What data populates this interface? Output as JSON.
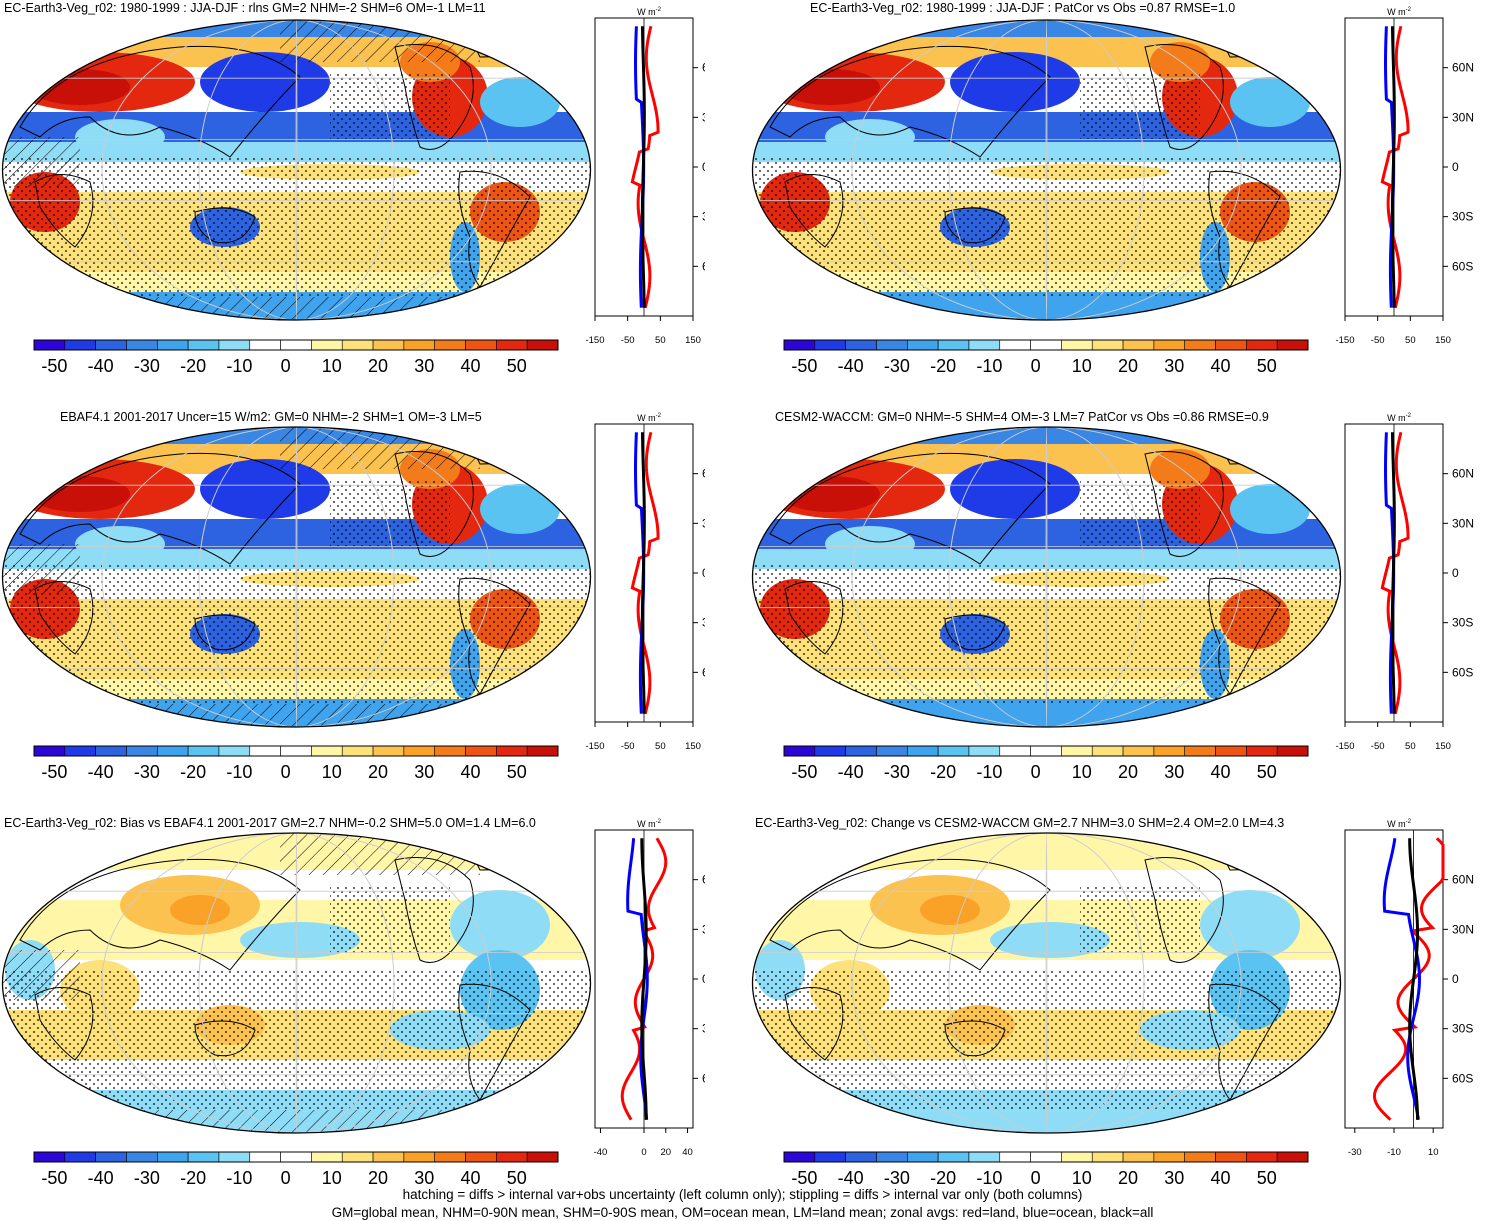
{
  "panels": [
    {
      "title": "EC-Earth3-Veg_r02: 1980-1999 : JJA-DJF : rlns GM=2 NHM=-2 SHM=6 OM=-1 LM=11",
      "hatch": true,
      "change": false,
      "zonal_xticks": [
        "-150",
        "-50",
        "50",
        "150"
      ],
      "zonal_xlim": [
        -150,
        150
      ]
    },
    {
      "title": "EC-Earth3-Veg_r02: 1980-1999 : JJA-DJF : PatCor vs Obs =0.87 RMSE=1.0",
      "hatch": false,
      "change": false,
      "zonal_xticks": [
        "-150",
        "-50",
        "50",
        "150"
      ],
      "zonal_xlim": [
        -150,
        150
      ]
    },
    {
      "title": "EBAF4.1 2001-2017 Uncer=15 W/m2: GM=0 NHM=-2 SHM=1 OM=-3 LM=5",
      "hatch": true,
      "change": false,
      "zonal_xticks": [
        "-150",
        "-50",
        "50",
        "150"
      ],
      "zonal_xlim": [
        -150,
        150
      ]
    },
    {
      "title": "CESM2-WACCM: GM=0 NHM=-5 SHM=4 OM=-3 LM=7 PatCor vs Obs =0.86 RMSE=0.9",
      "hatch": false,
      "change": false,
      "zonal_xticks": [
        "-150",
        "-50",
        "50",
        "150"
      ],
      "zonal_xlim": [
        -150,
        150
      ]
    },
    {
      "title": "EC-Earth3-Veg_r02: Bias vs EBAF4.1 2001-2017 GM=2.7 NHM=-0.2 SHM=5.0 OM=1.4 LM=6.0",
      "hatch": true,
      "change": true,
      "zonal_xticks": [
        "-40",
        "0",
        "20",
        "40"
      ],
      "zonal_xlim": [
        -45,
        45
      ]
    },
    {
      "title": "EC-Earth3-Veg_r02: Change vs CESM2-WACCM GM=2.7 NHM=3.0 SHM=2.4 OM=2.0 LM=4.3",
      "hatch": false,
      "change": true,
      "zonal_xticks": [
        "-30",
        "-10",
        "10"
      ],
      "zonal_xlim": [
        -35,
        15
      ]
    }
  ],
  "zonal_units": "W m",
  "zonal_units_sup": "-2",
  "lat_labels": [
    "60N",
    "30N",
    "0",
    "30S",
    "60S"
  ],
  "lat_values": [
    60,
    30,
    0,
    -30,
    -60
  ],
  "colorbar_labels": [
    "-50",
    "-40",
    "-30",
    "-20",
    "-10",
    "0",
    "10",
    "20",
    "30",
    "40",
    "50"
  ],
  "colorbar_colors": [
    "#2b06d6",
    "#1f3be8",
    "#2d63e0",
    "#3a86e4",
    "#3fa3ee",
    "#5ac3f2",
    "#8fdcf7",
    "#ffffff",
    "#ffffff",
    "#fff6a8",
    "#fde17a",
    "#fcc24f",
    "#faa128",
    "#f47b1a",
    "#ee5514",
    "#e4280f",
    "#c81009"
  ],
  "series_colors": {
    "land": "#ff0000",
    "ocean": "#0000ff",
    "all": "#000000"
  },
  "footer": {
    "line1": "hatching = diffs > internal var+obs uncertainty (left column only); stippling = diffs > internal var only (both columns)",
    "line2": "GM=global mean, NHM=0-90N mean, SHM=0-90S mean, OM=ocean mean, LM=land mean; zonal avgs: red=land, blue=ocean, black=all"
  }
}
